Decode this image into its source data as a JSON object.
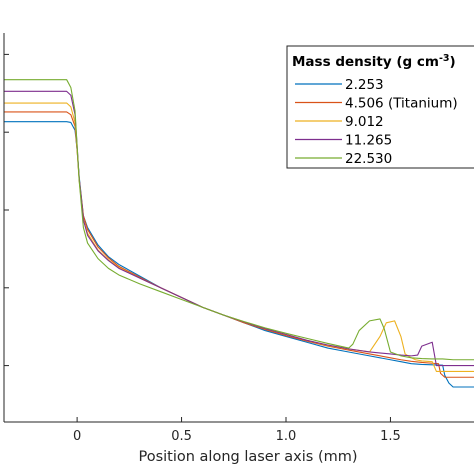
{
  "chart_data": {
    "type": "line",
    "title": "",
    "xlabel": "Position along laser axis (mm)",
    "ylabel": "",
    "xlim": [
      -0.35,
      1.9
    ],
    "ylim": [
      0,
      10
    ],
    "x_ticks": [
      {
        "value": 0,
        "label": "0"
      },
      {
        "value": 0.5,
        "label": "0.5"
      },
      {
        "value": 1.0,
        "label": "1.0"
      },
      {
        "value": 1.5,
        "label": "1.5"
      }
    ],
    "y_ticks": [
      1.45,
      3.45,
      5.45,
      7.45,
      9.45
    ],
    "grid": false,
    "legend": {
      "title_text": "Mass density (g cm",
      "title_sup": "-3",
      "title_end": ")",
      "placement": "top-right"
    },
    "series": [
      {
        "name": "2.253",
        "color": "#0072BD",
        "x": [
          -0.35,
          -0.05,
          -0.03,
          -0.01,
          0.0,
          0.01,
          0.03,
          0.05,
          0.1,
          0.15,
          0.2,
          0.3,
          0.4,
          0.5,
          0.6,
          0.7,
          0.8,
          0.9,
          1.0,
          1.1,
          1.2,
          1.3,
          1.4,
          1.5,
          1.55,
          1.6,
          1.65,
          1.7,
          1.75,
          1.76,
          1.78,
          1.8,
          1.9
        ],
        "y": [
          7.72,
          7.72,
          7.7,
          7.5,
          7.0,
          6.3,
          5.3,
          5.0,
          4.55,
          4.25,
          4.05,
          3.75,
          3.45,
          3.2,
          2.95,
          2.75,
          2.55,
          2.35,
          2.2,
          2.05,
          1.9,
          1.8,
          1.7,
          1.6,
          1.55,
          1.5,
          1.48,
          1.47,
          1.46,
          1.2,
          1.0,
          0.9,
          0.9
        ]
      },
      {
        "name": "4.506 (Titanium)",
        "color": "#D95319",
        "x": [
          -0.35,
          -0.05,
          -0.03,
          -0.01,
          0.0,
          0.01,
          0.03,
          0.05,
          0.1,
          0.15,
          0.2,
          0.3,
          0.4,
          0.5,
          0.6,
          0.7,
          0.8,
          0.9,
          1.0,
          1.1,
          1.2,
          1.3,
          1.4,
          1.5,
          1.55,
          1.6,
          1.65,
          1.7,
          1.73,
          1.74,
          1.76,
          1.9
        ],
        "y": [
          7.97,
          7.97,
          7.9,
          7.6,
          7.0,
          6.25,
          5.3,
          4.95,
          4.5,
          4.22,
          4.0,
          3.72,
          3.45,
          3.2,
          2.95,
          2.75,
          2.55,
          2.38,
          2.22,
          2.08,
          1.95,
          1.85,
          1.75,
          1.65,
          1.6,
          1.56,
          1.53,
          1.51,
          1.5,
          1.25,
          1.15,
          1.15
        ]
      },
      {
        "name": "9.012",
        "color": "#EDB120",
        "x": [
          -0.35,
          -0.05,
          -0.03,
          -0.01,
          0.0,
          0.01,
          0.03,
          0.05,
          0.1,
          0.15,
          0.2,
          0.3,
          0.4,
          0.5,
          0.6,
          0.7,
          0.8,
          0.9,
          1.0,
          1.1,
          1.2,
          1.3,
          1.4,
          1.45,
          1.48,
          1.52,
          1.55,
          1.57,
          1.6,
          1.62,
          1.65,
          1.7,
          1.72,
          1.9
        ],
        "y": [
          8.2,
          8.2,
          8.1,
          7.7,
          7.0,
          6.2,
          5.2,
          4.85,
          4.42,
          4.17,
          3.97,
          3.7,
          3.45,
          3.2,
          2.95,
          2.75,
          2.57,
          2.4,
          2.25,
          2.1,
          1.97,
          1.88,
          1.8,
          2.2,
          2.55,
          2.6,
          2.2,
          1.75,
          1.65,
          1.6,
          1.57,
          1.55,
          1.3,
          1.3
        ]
      },
      {
        "name": "11.265",
        "color": "#7E2F8E",
        "x": [
          -0.35,
          -0.05,
          -0.03,
          -0.01,
          0.0,
          0.01,
          0.03,
          0.05,
          0.1,
          0.15,
          0.2,
          0.3,
          0.4,
          0.5,
          0.6,
          0.7,
          0.8,
          0.9,
          1.0,
          1.1,
          1.2,
          1.3,
          1.4,
          1.5,
          1.55,
          1.6,
          1.63,
          1.65,
          1.7,
          1.72,
          1.9
        ],
        "y": [
          8.5,
          8.5,
          8.4,
          7.9,
          7.1,
          6.25,
          5.2,
          4.8,
          4.4,
          4.15,
          3.95,
          3.7,
          3.45,
          3.2,
          2.95,
          2.75,
          2.57,
          2.4,
          2.25,
          2.1,
          1.98,
          1.88,
          1.8,
          1.75,
          1.72,
          1.7,
          1.72,
          1.95,
          2.05,
          1.45,
          1.45
        ]
      },
      {
        "name": "22.530",
        "color": "#77AC30",
        "x": [
          -0.35,
          -0.05,
          -0.03,
          -0.01,
          0.0,
          0.01,
          0.03,
          0.05,
          0.1,
          0.15,
          0.2,
          0.3,
          0.4,
          0.5,
          0.6,
          0.7,
          0.8,
          0.9,
          1.0,
          1.1,
          1.2,
          1.3,
          1.32,
          1.35,
          1.4,
          1.45,
          1.47,
          1.5,
          1.55,
          1.6,
          1.65,
          1.7,
          1.75,
          1.8,
          1.9
        ],
        "y": [
          8.8,
          8.8,
          8.6,
          8.0,
          7.1,
          6.2,
          5.0,
          4.6,
          4.2,
          3.95,
          3.78,
          3.55,
          3.35,
          3.15,
          2.95,
          2.75,
          2.58,
          2.42,
          2.28,
          2.15,
          2.02,
          1.9,
          2.0,
          2.35,
          2.6,
          2.65,
          2.4,
          1.8,
          1.7,
          1.65,
          1.63,
          1.62,
          1.62,
          1.6,
          1.6
        ]
      }
    ]
  }
}
